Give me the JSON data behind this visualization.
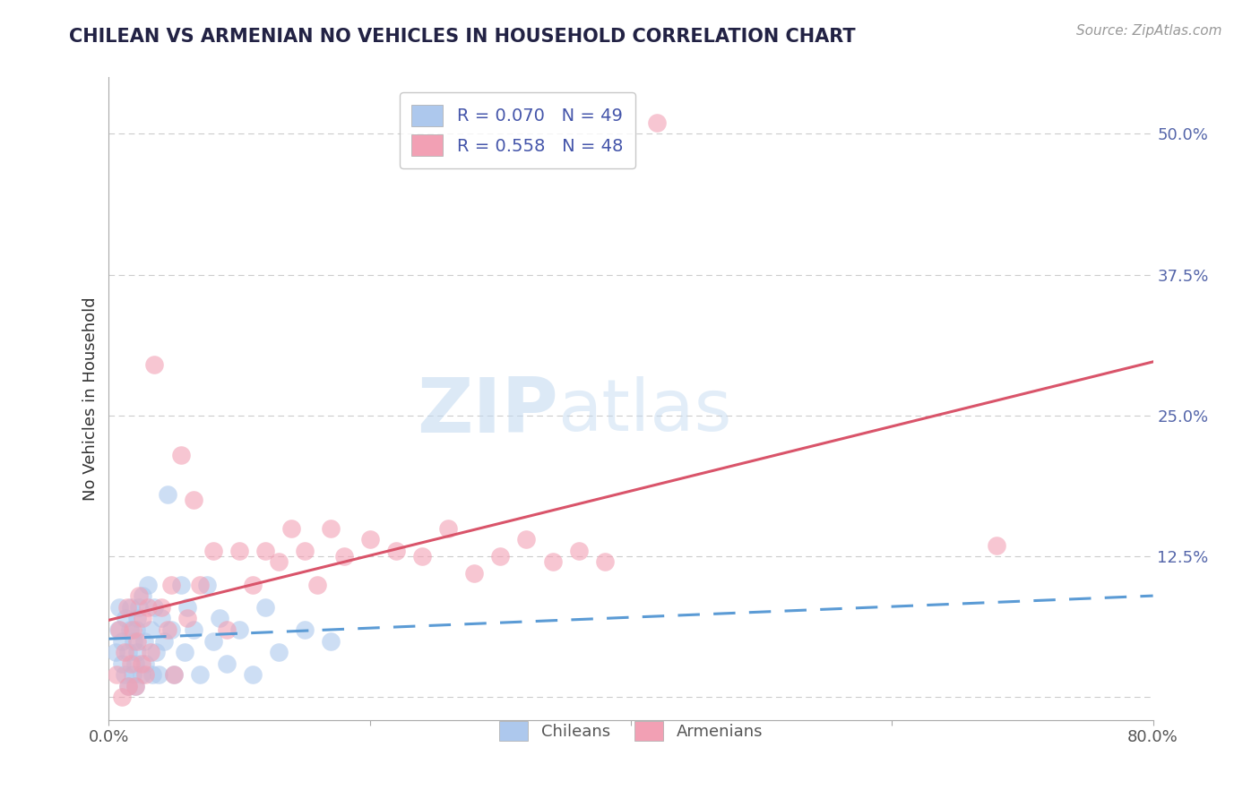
{
  "title": "CHILEAN VS ARMENIAN NO VEHICLES IN HOUSEHOLD CORRELATION CHART",
  "source": "Source: ZipAtlas.com",
  "ylabel": "No Vehicles in Household",
  "xlim": [
    0.0,
    0.8
  ],
  "ylim": [
    -0.02,
    0.55
  ],
  "y_ticks": [
    0.0,
    0.125,
    0.25,
    0.375,
    0.5
  ],
  "y_tick_labels": [
    "",
    "12.5%",
    "25.0%",
    "37.5%",
    "50.0%"
  ],
  "legend_r_chilean": "R = 0.070",
  "legend_n_chilean": "N = 49",
  "legend_r_armenian": "R = 0.558",
  "legend_n_armenian": "N = 48",
  "chilean_color": "#adc8ed",
  "armenian_color": "#f2a0b4",
  "chilean_line_color": "#5b9bd5",
  "armenian_line_color": "#d9546a",
  "background_color": "#ffffff",
  "grid_color": "#cccccc",
  "chilean_x": [
    0.005,
    0.007,
    0.008,
    0.01,
    0.01,
    0.012,
    0.013,
    0.015,
    0.015,
    0.016,
    0.017,
    0.018,
    0.019,
    0.02,
    0.02,
    0.021,
    0.022,
    0.022,
    0.023,
    0.025,
    0.026,
    0.027,
    0.028,
    0.03,
    0.032,
    0.033,
    0.035,
    0.036,
    0.038,
    0.04,
    0.042,
    0.045,
    0.048,
    0.05,
    0.055,
    0.058,
    0.06,
    0.065,
    0.07,
    0.075,
    0.08,
    0.085,
    0.09,
    0.1,
    0.11,
    0.12,
    0.13,
    0.15,
    0.17
  ],
  "chilean_y": [
    0.04,
    0.06,
    0.08,
    0.03,
    0.05,
    0.02,
    0.07,
    0.01,
    0.04,
    0.06,
    0.08,
    0.02,
    0.05,
    0.01,
    0.03,
    0.06,
    0.04,
    0.07,
    0.08,
    0.02,
    0.09,
    0.05,
    0.03,
    0.1,
    0.06,
    0.02,
    0.08,
    0.04,
    0.02,
    0.07,
    0.05,
    0.18,
    0.06,
    0.02,
    0.1,
    0.04,
    0.08,
    0.06,
    0.02,
    0.1,
    0.05,
    0.07,
    0.03,
    0.06,
    0.02,
    0.08,
    0.04,
    0.06,
    0.05
  ],
  "armenian_x": [
    0.006,
    0.008,
    0.01,
    0.012,
    0.014,
    0.015,
    0.017,
    0.018,
    0.02,
    0.022,
    0.023,
    0.025,
    0.026,
    0.028,
    0.03,
    0.032,
    0.035,
    0.04,
    0.045,
    0.048,
    0.05,
    0.055,
    0.06,
    0.065,
    0.07,
    0.08,
    0.09,
    0.1,
    0.11,
    0.12,
    0.13,
    0.14,
    0.15,
    0.16,
    0.17,
    0.18,
    0.2,
    0.22,
    0.24,
    0.26,
    0.28,
    0.3,
    0.32,
    0.34,
    0.36,
    0.38,
    0.42,
    0.68
  ],
  "armenian_y": [
    0.02,
    0.06,
    0.0,
    0.04,
    0.08,
    0.01,
    0.03,
    0.06,
    0.01,
    0.05,
    0.09,
    0.03,
    0.07,
    0.02,
    0.08,
    0.04,
    0.295,
    0.08,
    0.06,
    0.1,
    0.02,
    0.215,
    0.07,
    0.175,
    0.1,
    0.13,
    0.06,
    0.13,
    0.1,
    0.13,
    0.12,
    0.15,
    0.13,
    0.1,
    0.15,
    0.125,
    0.14,
    0.13,
    0.125,
    0.15,
    0.11,
    0.125,
    0.14,
    0.12,
    0.13,
    0.12,
    0.51,
    0.135
  ]
}
